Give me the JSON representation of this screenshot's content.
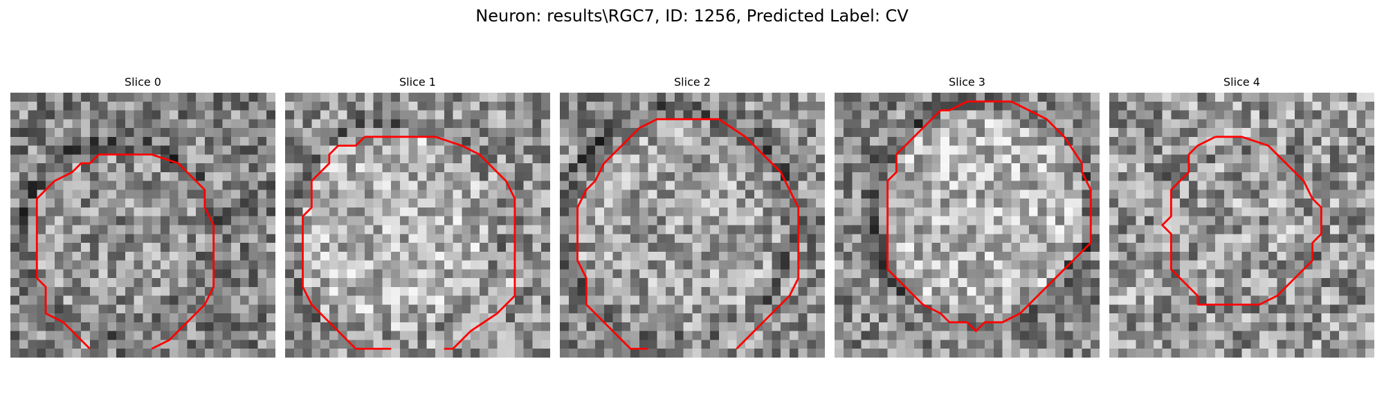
{
  "figure": {
    "title": "Neuron: results\\RGC7, ID: 1256, Predicted Label: CV",
    "grid_size": 30,
    "contour_color": "#ff0000",
    "panels": [
      {
        "title": "Slice 0",
        "brightness": 0.52,
        "contrast": 0.55,
        "center_bright": 0.05,
        "ring_dark": 0.18,
        "seed": 11,
        "contour": [
          [
            10,
            7
          ],
          [
            12,
            7
          ],
          [
            13,
            7
          ],
          [
            16,
            7
          ],
          [
            19,
            8
          ],
          [
            22,
            11
          ],
          [
            22,
            13
          ],
          [
            23,
            15
          ],
          [
            23,
            22
          ],
          [
            22,
            24
          ],
          [
            19,
            27
          ],
          [
            18,
            28
          ],
          [
            16,
            29
          ]
        ],
        "contour_left": [
          [
            10,
            7
          ],
          [
            9,
            8
          ],
          [
            8,
            8
          ],
          [
            7,
            9
          ],
          [
            5,
            10
          ],
          [
            3,
            12
          ],
          [
            3,
            14
          ],
          [
            3,
            21
          ],
          [
            4,
            22
          ],
          [
            4,
            25
          ],
          [
            6,
            26
          ],
          [
            8,
            28
          ],
          [
            9,
            29
          ]
        ]
      },
      {
        "title": "Slice 1",
        "brightness": 0.58,
        "contrast": 0.55,
        "center_bright": 0.12,
        "ring_dark": 0.16,
        "seed": 23,
        "contour": [
          [
            9,
            5
          ],
          [
            10,
            5
          ],
          [
            17,
            5
          ],
          [
            20,
            6
          ],
          [
            22,
            7
          ],
          [
            25,
            10
          ],
          [
            26,
            12
          ],
          [
            26,
            23
          ],
          [
            24,
            25
          ],
          [
            21,
            27
          ],
          [
            19,
            29
          ],
          [
            18,
            29
          ]
        ],
        "contour_left": [
          [
            9,
            5
          ],
          [
            8,
            6
          ],
          [
            6,
            6
          ],
          [
            5,
            7
          ],
          [
            5,
            8
          ],
          [
            3,
            10
          ],
          [
            3,
            13
          ],
          [
            2,
            14
          ],
          [
            2,
            22
          ],
          [
            3,
            24
          ],
          [
            5,
            26
          ],
          [
            6,
            27
          ],
          [
            8,
            29
          ],
          [
            12,
            29
          ]
        ]
      },
      {
        "title": "Slice 2",
        "brightness": 0.55,
        "contrast": 0.55,
        "center_bright": 0.08,
        "ring_dark": 0.2,
        "seed": 37,
        "contour": [
          [
            11,
            3
          ],
          [
            13,
            3
          ],
          [
            18,
            3
          ],
          [
            21,
            5
          ],
          [
            23,
            7
          ],
          [
            25,
            9
          ],
          [
            26,
            11
          ],
          [
            27,
            13
          ],
          [
            27,
            21
          ],
          [
            26,
            23
          ],
          [
            24,
            25
          ],
          [
            22,
            27
          ],
          [
            20,
            29
          ]
        ],
        "contour_left": [
          [
            11,
            3
          ],
          [
            9,
            4
          ],
          [
            7,
            6
          ],
          [
            5,
            8
          ],
          [
            4,
            10
          ],
          [
            3,
            11
          ],
          [
            2,
            13
          ],
          [
            2,
            19
          ],
          [
            3,
            21
          ],
          [
            3,
            24
          ],
          [
            4,
            25
          ],
          [
            6,
            27
          ],
          [
            8,
            29
          ],
          [
            10,
            29
          ]
        ]
      },
      {
        "title": "Slice 3",
        "brightness": 0.55,
        "contrast": 0.55,
        "center_bright": 0.16,
        "ring_dark": 0.22,
        "seed": 53,
        "contour": [
          [
            15,
            1
          ],
          [
            17,
            1
          ],
          [
            20,
            1
          ],
          [
            24,
            3
          ],
          [
            26,
            5
          ],
          [
            28,
            8
          ],
          [
            28,
            9
          ],
          [
            29,
            11
          ],
          [
            29,
            17
          ],
          [
            27,
            19
          ],
          [
            23,
            23
          ],
          [
            21,
            25
          ],
          [
            19,
            26
          ],
          [
            17,
            26
          ],
          [
            16,
            27
          ],
          [
            15,
            26
          ]
        ],
        "contour_left": [
          [
            15,
            1
          ],
          [
            13,
            2
          ],
          [
            12,
            2
          ],
          [
            9,
            5
          ],
          [
            8,
            6
          ],
          [
            7,
            7
          ],
          [
            7,
            9
          ],
          [
            6,
            10
          ],
          [
            6,
            20
          ],
          [
            8,
            22
          ],
          [
            10,
            24
          ],
          [
            12,
            25
          ],
          [
            13,
            26
          ],
          [
            15,
            26
          ]
        ]
      },
      {
        "title": "Slice 4",
        "brightness": 0.6,
        "contrast": 0.6,
        "center_bright": 0.02,
        "ring_dark": 0.1,
        "seed": 71,
        "contour": [
          [
            12,
            5
          ],
          [
            15,
            5
          ],
          [
            18,
            6
          ],
          [
            20,
            8
          ],
          [
            22,
            10
          ],
          [
            23,
            12
          ],
          [
            24,
            13
          ],
          [
            24,
            16
          ],
          [
            23,
            17
          ],
          [
            23,
            19
          ],
          [
            22,
            20
          ],
          [
            21,
            21
          ],
          [
            19,
            23
          ],
          [
            17,
            24
          ],
          [
            15,
            24
          ],
          [
            12,
            24
          ],
          [
            10,
            24
          ]
        ],
        "contour_left": [
          [
            12,
            5
          ],
          [
            10,
            6
          ],
          [
            9,
            7
          ],
          [
            9,
            9
          ],
          [
            8,
            10
          ],
          [
            7,
            11
          ],
          [
            7,
            14
          ],
          [
            6,
            15
          ],
          [
            7,
            16
          ],
          [
            7,
            20
          ],
          [
            8,
            21
          ],
          [
            10,
            23
          ],
          [
            10,
            24
          ]
        ]
      }
    ]
  }
}
